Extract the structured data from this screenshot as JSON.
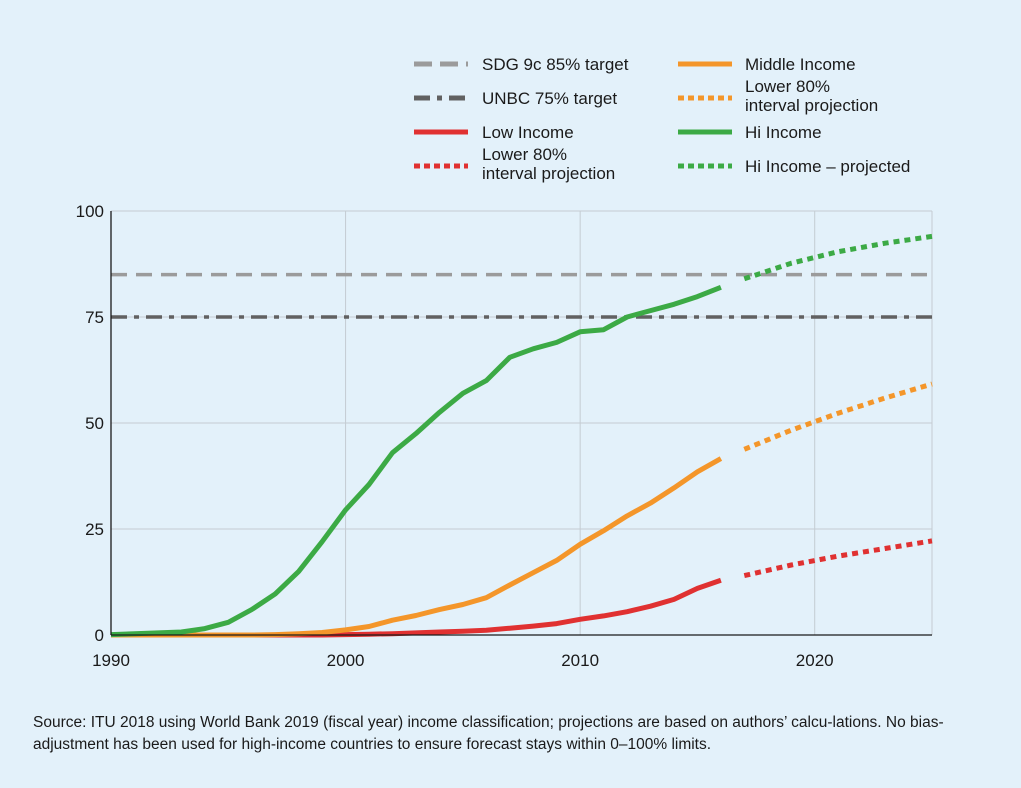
{
  "chart_data": {
    "type": "line",
    "title": "",
    "xlabel": "",
    "ylabel": "",
    "xlim": [
      1990,
      2025
    ],
    "ylim": [
      0,
      100
    ],
    "x_ticks": [
      1990,
      2000,
      2010,
      2020
    ],
    "y_ticks": [
      0,
      25,
      50,
      75,
      100
    ],
    "grid": true,
    "legend_position": "top-right",
    "reference_lines": [
      {
        "name": "SDG 9c 85% target",
        "y": 85,
        "color": "#9b9b9b",
        "style": "dashed"
      },
      {
        "name": "UNBC 75% target",
        "y": 75,
        "color": "#616161",
        "style": "dashdot"
      }
    ],
    "series": [
      {
        "name": "Low Income",
        "color": "#e03131",
        "style": "solid",
        "x": [
          1990,
          1991,
          1992,
          1993,
          1994,
          1995,
          1996,
          1997,
          1998,
          1999,
          2000,
          2001,
          2002,
          2003,
          2004,
          2005,
          2006,
          2007,
          2008,
          2009,
          2010,
          2011,
          2012,
          2013,
          2014,
          2015,
          2016
        ],
        "y": [
          0,
          0,
          0,
          0,
          0,
          0,
          0,
          0,
          0,
          0,
          0.1,
          0.2,
          0.3,
          0.5,
          0.7,
          0.9,
          1.1,
          1.6,
          2.1,
          2.7,
          3.7,
          4.5,
          5.5,
          6.8,
          8.4,
          11,
          12.9
        ]
      },
      {
        "name": "Lower 80% interval projection",
        "color": "#e03131",
        "style": "dotted",
        "x": [
          2017,
          2019,
          2021,
          2023,
          2025
        ],
        "y": [
          14,
          16.5,
          18.6,
          20.4,
          22.2
        ]
      },
      {
        "name": "Middle Income",
        "color": "#f4962a",
        "style": "solid",
        "x": [
          1990,
          1991,
          1992,
          1993,
          1994,
          1995,
          1996,
          1997,
          1998,
          1999,
          2000,
          2001,
          2002,
          2003,
          2004,
          2005,
          2006,
          2007,
          2008,
          2009,
          2010,
          2011,
          2012,
          2013,
          2014,
          2015,
          2016
        ],
        "y": [
          0,
          0,
          0,
          0,
          0,
          0,
          0,
          0.1,
          0.3,
          0.6,
          1.2,
          2,
          3.5,
          4.6,
          6,
          7.2,
          8.8,
          11.8,
          14.7,
          17.6,
          21.4,
          24.6,
          28.1,
          31.1,
          34.7,
          38.5,
          41.6
        ]
      },
      {
        "name": "Lower 80% interval projection",
        "color": "#f4962a",
        "style": "dotted",
        "x": [
          2017,
          2019,
          2021,
          2023,
          2025
        ],
        "y": [
          43.8,
          48.3,
          52.3,
          55.9,
          59.2
        ]
      },
      {
        "name": "Hi Income",
        "color": "#3caa45",
        "style": "solid",
        "x": [
          1990,
          1991,
          1992,
          1993,
          1994,
          1995,
          1996,
          1997,
          1998,
          1999,
          2000,
          2001,
          2002,
          2003,
          2004,
          2005,
          2006,
          2007,
          2008,
          2009,
          2010,
          2011,
          2012,
          2013,
          2014,
          2015,
          2016
        ],
        "y": [
          0.1,
          0.3,
          0.5,
          0.7,
          1.5,
          3,
          6,
          9.7,
          15,
          22,
          29.5,
          35.5,
          43,
          47.5,
          52.5,
          57,
          60,
          65.5,
          67.5,
          69,
          71.5,
          72,
          75,
          76.5,
          78,
          79.8,
          82
        ]
      },
      {
        "name": "Hi Income – projected",
        "color": "#3caa45",
        "style": "dotted",
        "x": [
          2017,
          2019,
          2021,
          2023,
          2025
        ],
        "y": [
          84,
          87.7,
          90.4,
          92.4,
          94
        ]
      }
    ],
    "legend": [
      {
        "label": "SDG 9c 85% target",
        "color": "#9b9b9b",
        "style": "dashed"
      },
      {
        "label": "UNBC 75% target",
        "color": "#616161",
        "style": "dashdot"
      },
      {
        "label": "Low Income",
        "color": "#e03131",
        "style": "solid"
      },
      {
        "label": "Lower 80%\ninterval projection",
        "color": "#e03131",
        "style": "dotted"
      },
      {
        "label": "Middle Income",
        "color": "#f4962a",
        "style": "solid"
      },
      {
        "label": "Lower 80%\ninterval projection",
        "color": "#f4962a",
        "style": "dotted"
      },
      {
        "label": "Hi Income",
        "color": "#3caa45",
        "style": "solid"
      },
      {
        "label": "Hi Income – projected",
        "color": "#3caa45",
        "style": "dotted"
      }
    ]
  },
  "source_note": "Source: ITU 2018 using World Bank 2019 (fiscal year) income classification; projections are based on authors’ calcu-lations. No bias-adjustment has been used for high-income countries to ensure forecast stays within 0–100% limits."
}
